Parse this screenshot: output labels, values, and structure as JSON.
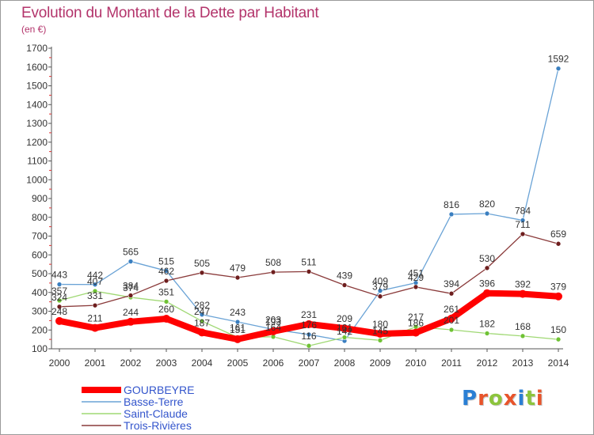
{
  "title": "Evolution du Montant de la Dette par Habitant",
  "unit": "(en €)",
  "logo": {
    "text": "Proxiti",
    "letter_colors": [
      "#2a7fd4",
      "#e8542b",
      "#8cc43c",
      "#e8542b",
      "#2a7fd4",
      "#8cc43c",
      "#e8542b"
    ]
  },
  "chart_data": {
    "type": "line",
    "x": [
      2000,
      2001,
      2002,
      2003,
      2004,
      2005,
      2006,
      2007,
      2008,
      2009,
      2010,
      2011,
      2012,
      2013,
      2014
    ],
    "ylim": [
      100,
      1700
    ],
    "yticks": [
      100,
      200,
      300,
      400,
      500,
      600,
      700,
      800,
      900,
      1000,
      1100,
      1200,
      1300,
      1400,
      1500,
      1600,
      1700
    ],
    "grid": false,
    "legend_position": "bottom-left",
    "series": [
      {
        "name": "Basse-Terre",
        "color": "#6aa3d6",
        "marker": "#3a7fc0",
        "width": 1.3,
        "values": [
          443,
          442,
          565,
          515,
          282,
          243,
          203,
          176,
          142,
          409,
          451,
          816,
          820,
          784,
          1592
        ],
        "labels": [
          "443",
          "442",
          "565",
          "515",
          "282",
          "243",
          "203",
          "176",
          "142",
          "409",
          "451",
          "816",
          "820",
          "784",
          "1592"
        ]
      },
      {
        "name": "Saint-Claude",
        "color": "#9fd873",
        "marker": "#6fc234",
        "width": 1.3,
        "values": [
          357,
          407,
          374,
          351,
          247,
          161,
          164,
          116,
          161,
          145,
          217,
          201,
          182,
          168,
          150
        ],
        "labels": [
          "357",
          "407",
          "374",
          "351",
          "247",
          "161",
          "164",
          "116",
          "161",
          "145",
          "217",
          "201",
          "182",
          "168",
          "150"
        ]
      },
      {
        "name": "Trois-Rivières",
        "color": "#8a3a3a",
        "marker": "#6e1e1e",
        "width": 1.3,
        "values": [
          324,
          331,
          384,
          462,
          505,
          479,
          508,
          511,
          439,
          379,
          429,
          394,
          530,
          711,
          659
        ],
        "labels": [
          "324",
          "331",
          "384",
          "462",
          "505",
          "479",
          "508",
          "511",
          "439",
          "379",
          "429",
          "394",
          "530",
          "711",
          "659"
        ]
      },
      {
        "name": "GOURBEYRE",
        "color": "#ff0000",
        "marker": "#ff0000",
        "width": 8,
        "values": [
          248,
          211,
          244,
          260,
          187,
          151,
          193,
          231,
          209,
          180,
          186,
          261,
          396,
          392,
          379
        ],
        "labels": [
          "248",
          "211",
          "244",
          "260",
          "187",
          "151",
          "193",
          "231",
          "209",
          "180",
          "186",
          "261",
          "396",
          "392",
          "379"
        ]
      }
    ],
    "legend": [
      {
        "name": "GOURBEYRE",
        "color": "#ff0000",
        "text_color": "#3355cc"
      },
      {
        "name": "Basse-Terre",
        "color": "#6aa3d6",
        "text_color": "#3355cc"
      },
      {
        "name": "Saint-Claude",
        "color": "#9fd873",
        "text_color": "#3355cc"
      },
      {
        "name": "Trois-Rivières",
        "color": "#8a3a3a",
        "text_color": "#3355cc"
      }
    ]
  }
}
